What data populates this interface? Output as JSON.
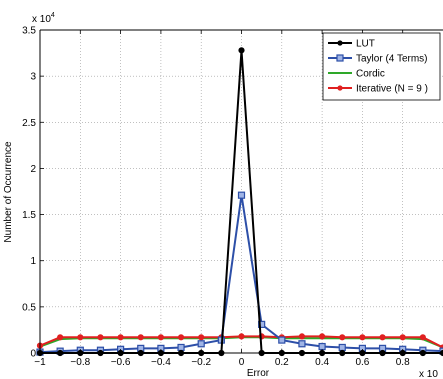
{
  "chart_data": {
    "type": "line",
    "xlabel": "Error",
    "ylabel": "Number of Occurrence",
    "x_multiplier_text": "x 10",
    "y_multiplier_text": "x 10",
    "y_multiplier_exp": "4",
    "xlim": [
      -1,
      1
    ],
    "ylim": [
      0,
      3.5
    ],
    "x_ticks": [
      "−1",
      "−0.8",
      "−0.6",
      "−0.4",
      "−0.2",
      "0",
      "0.2",
      "0.4",
      "0.6",
      "0.8"
    ],
    "x_tick_values": [
      -1,
      -0.8,
      -0.6,
      -0.4,
      -0.2,
      0,
      0.2,
      0.4,
      0.6,
      0.8
    ],
    "y_ticks": [
      "0",
      "0.5",
      "1",
      "1.5",
      "2",
      "2.5",
      "3",
      "3.5"
    ],
    "y_tick_values": [
      0,
      0.5,
      1,
      1.5,
      2,
      2.5,
      3,
      3.5
    ],
    "grid": true,
    "legend_position": "top-right",
    "x": [
      -1,
      -0.9,
      -0.8,
      -0.7,
      -0.6,
      -0.5,
      -0.4,
      -0.3,
      -0.2,
      -0.1,
      0,
      0.1,
      0.2,
      0.3,
      0.4,
      0.5,
      0.6,
      0.7,
      0.8,
      0.9,
      1
    ],
    "series": [
      {
        "name": "LUT",
        "color": "#000000",
        "marker": "circle",
        "values": [
          0,
          0,
          0,
          0,
          0,
          0,
          0,
          0,
          0,
          0,
          3.28,
          0,
          0,
          0,
          0,
          0,
          0,
          0,
          0,
          0,
          0
        ]
      },
      {
        "name": "Taylor (4 Terms)",
        "color": "#2d4fa8",
        "marker": "square",
        "values": [
          0.01,
          0.02,
          0.03,
          0.03,
          0.04,
          0.05,
          0.05,
          0.06,
          0.1,
          0.14,
          1.71,
          0.31,
          0.14,
          0.1,
          0.07,
          0.06,
          0.05,
          0.05,
          0.04,
          0.03,
          0.02
        ]
      },
      {
        "name": "Cordic",
        "color": "#2ea829",
        "marker": "none",
        "values": [
          0.07,
          0.15,
          0.16,
          0.16,
          0.16,
          0.16,
          0.16,
          0.16,
          0.16,
          0.16,
          0.17,
          0.17,
          0.16,
          0.16,
          0.16,
          0.16,
          0.16,
          0.16,
          0.16,
          0.15,
          0.06
        ]
      },
      {
        "name": "Iterative (N = 9 )",
        "color": "#e02020",
        "marker": "circle",
        "values": [
          0.08,
          0.17,
          0.17,
          0.17,
          0.17,
          0.17,
          0.17,
          0.17,
          0.17,
          0.17,
          0.18,
          0.18,
          0.17,
          0.18,
          0.18,
          0.17,
          0.17,
          0.17,
          0.17,
          0.17,
          0.06
        ]
      }
    ]
  }
}
